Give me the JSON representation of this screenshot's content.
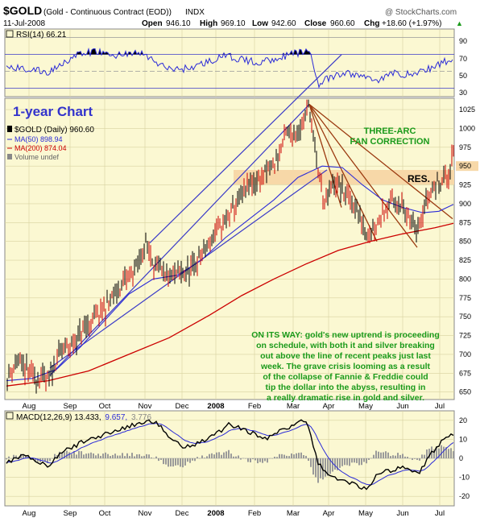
{
  "header": {
    "symbol": "$GOLD",
    "description": "(Gold - Continuous Contract (EOD))",
    "exchange": "INDX",
    "watermark": "@ StockCharts.com",
    "date": "11-Jul-2008",
    "open_label": "Open",
    "open": "946.10",
    "high_label": "High",
    "high": "969.10",
    "low_label": "Low",
    "low": "942.60",
    "close_label": "Close",
    "close": "960.60",
    "chg_label": "Chg",
    "chg": "+18.60 (+1.97%)",
    "chg_arrow": "▲"
  },
  "rsi_panel": {
    "label": "RSI(14) 66.21",
    "levels": [
      90,
      70,
      50,
      30
    ],
    "level_labels": [
      "90",
      "70",
      "50",
      "30"
    ]
  },
  "price_panel": {
    "title": "1-year Chart",
    "legend": [
      {
        "text": "$GOLD (Daily) 960.60",
        "color": "#000000"
      },
      {
        "text": "MA(50) 898.94",
        "color": "#2b2bd8"
      },
      {
        "text": "MA(200) 874.04",
        "color": "#cc0000"
      },
      {
        "text": "Volume undef",
        "color": "#666666"
      }
    ],
    "fan_label_1": "THREE-ARC",
    "fan_label_2": "FAN CORRECTION",
    "res_label": "RES.",
    "annotation": [
      "ON ITS WAY: gold's new uptrend is proceeding",
      "on schedule, with both it and silver breaking",
      "out above the line of recent peaks just last",
      "week. The grave crisis looming as a result",
      "of the collapse of Fannie & Freddie could",
      "tip the dollar into the abyss, resulting in",
      "a really dramatic rise in gold and silver."
    ],
    "y_ticks": [
      "1025",
      "1000",
      "975",
      "950",
      "925",
      "900",
      "875",
      "850",
      "825",
      "800",
      "775",
      "750",
      "725",
      "700",
      "675",
      "650"
    ],
    "highlight_label": "950"
  },
  "macd_panel": {
    "label_main": "MACD(12,26,9) 13.433,",
    "label_signal": "9.657,",
    "label_hist": "3.776",
    "y_ticks": [
      "20",
      "10",
      "0",
      "-10",
      "-20"
    ]
  },
  "x_axis": {
    "labels": [
      "Aug",
      "Sep",
      "Oct",
      "Nov",
      "Dec",
      "2008",
      "Feb",
      "Mar",
      "Apr",
      "May",
      "Jun",
      "Jul"
    ]
  },
  "chart_data": {
    "type": "line",
    "title": "$GOLD (Gold - Continuous Contract (EOD)) INDX",
    "ylim": [
      640,
      1040
    ],
    "series": [
      {
        "name": "$GOLD (Daily)",
        "x": [
          "Jul-2007",
          "Aug",
          "Sep",
          "Oct",
          "Nov",
          "Nov",
          "Dec",
          "Jan-2008",
          "Feb",
          "Mar",
          "Mar",
          "Apr",
          "May",
          "Jun",
          "Jul",
          "11-Jul-2008"
        ],
        "values": [
          666,
          675,
          712,
          760,
          845,
          795,
          800,
          860,
          920,
          995,
          1030,
          890,
          860,
          885,
          930,
          960.6
        ]
      },
      {
        "name": "MA(50)",
        "x": [
          "Aug",
          "Sep",
          "Oct",
          "Nov",
          "Dec",
          "Jan-2008",
          "Feb",
          "Mar",
          "Apr",
          "May",
          "Jun",
          "Jul"
        ],
        "values": [
          665,
          672,
          720,
          770,
          800,
          830,
          870,
          920,
          945,
          915,
          885,
          898.94
        ]
      },
      {
        "name": "MA(200)",
        "x": [
          "Aug",
          "Sep",
          "Oct",
          "Nov",
          "Dec",
          "Jan-2008",
          "Feb",
          "Mar",
          "Apr",
          "May",
          "Jun",
          "Jul"
        ],
        "values": [
          658,
          668,
          684,
          706,
          728,
          755,
          782,
          808,
          830,
          848,
          862,
          874.04
        ]
      }
    ],
    "rsi": {
      "name": "RSI(14)",
      "last": 66.21,
      "ylim": [
        20,
        100
      ]
    },
    "macd": {
      "name": "MACD(12,26,9)",
      "macd": 13.433,
      "signal": 9.657,
      "histogram": 3.776,
      "ylim": [
        -25,
        25
      ]
    },
    "colors": {
      "panel_bg": "#fbf8d2",
      "price": "#cc0000",
      "ma50": "#2b2bd8",
      "ma200": "#cc0000",
      "trendline": "#3b3bc8",
      "fan": "#9b3a10",
      "resistance_band": "#f7d8a8",
      "annotation": "#1a9a1a",
      "title": "#3333cc"
    }
  }
}
